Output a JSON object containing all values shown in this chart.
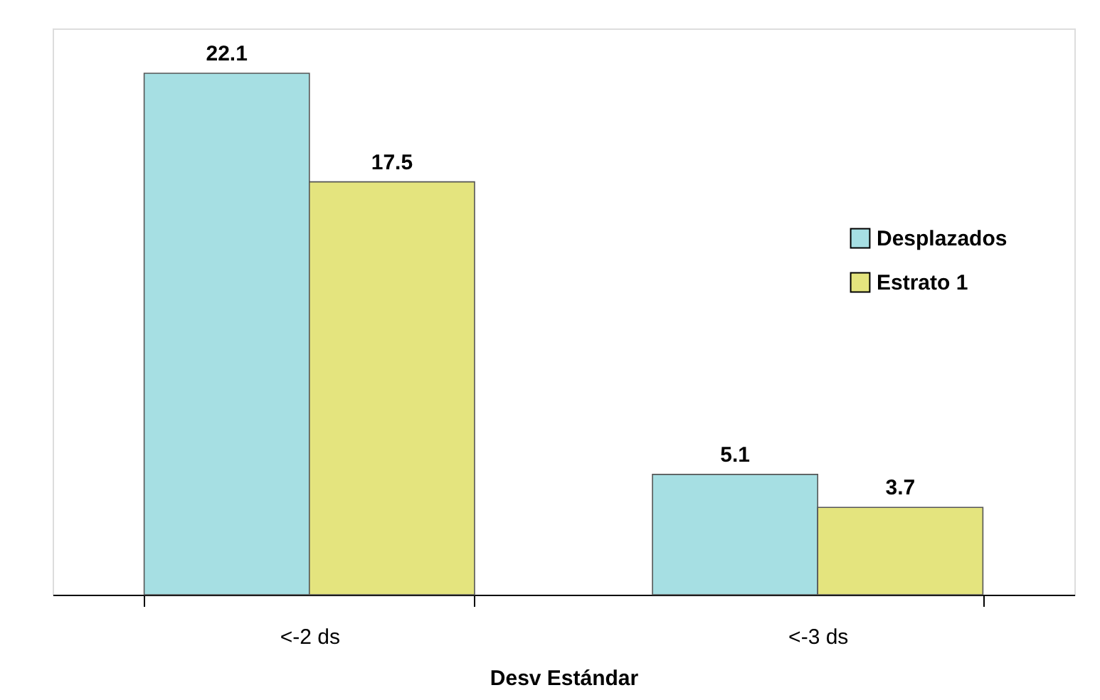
{
  "chart_data": {
    "type": "bar",
    "xlabel": "Desv Estándar",
    "categories": [
      "<-2 ds",
      "<-3 ds"
    ],
    "series": [
      {
        "name": "Desplazados",
        "color": "#a6dfe3",
        "values": [
          22.1,
          5.1
        ]
      },
      {
        "name": "Estrato 1",
        "color": "#e4e47e",
        "values": [
          17.5,
          3.7
        ]
      }
    ],
    "data_labels": true,
    "legend": "right",
    "grid": false
  }
}
